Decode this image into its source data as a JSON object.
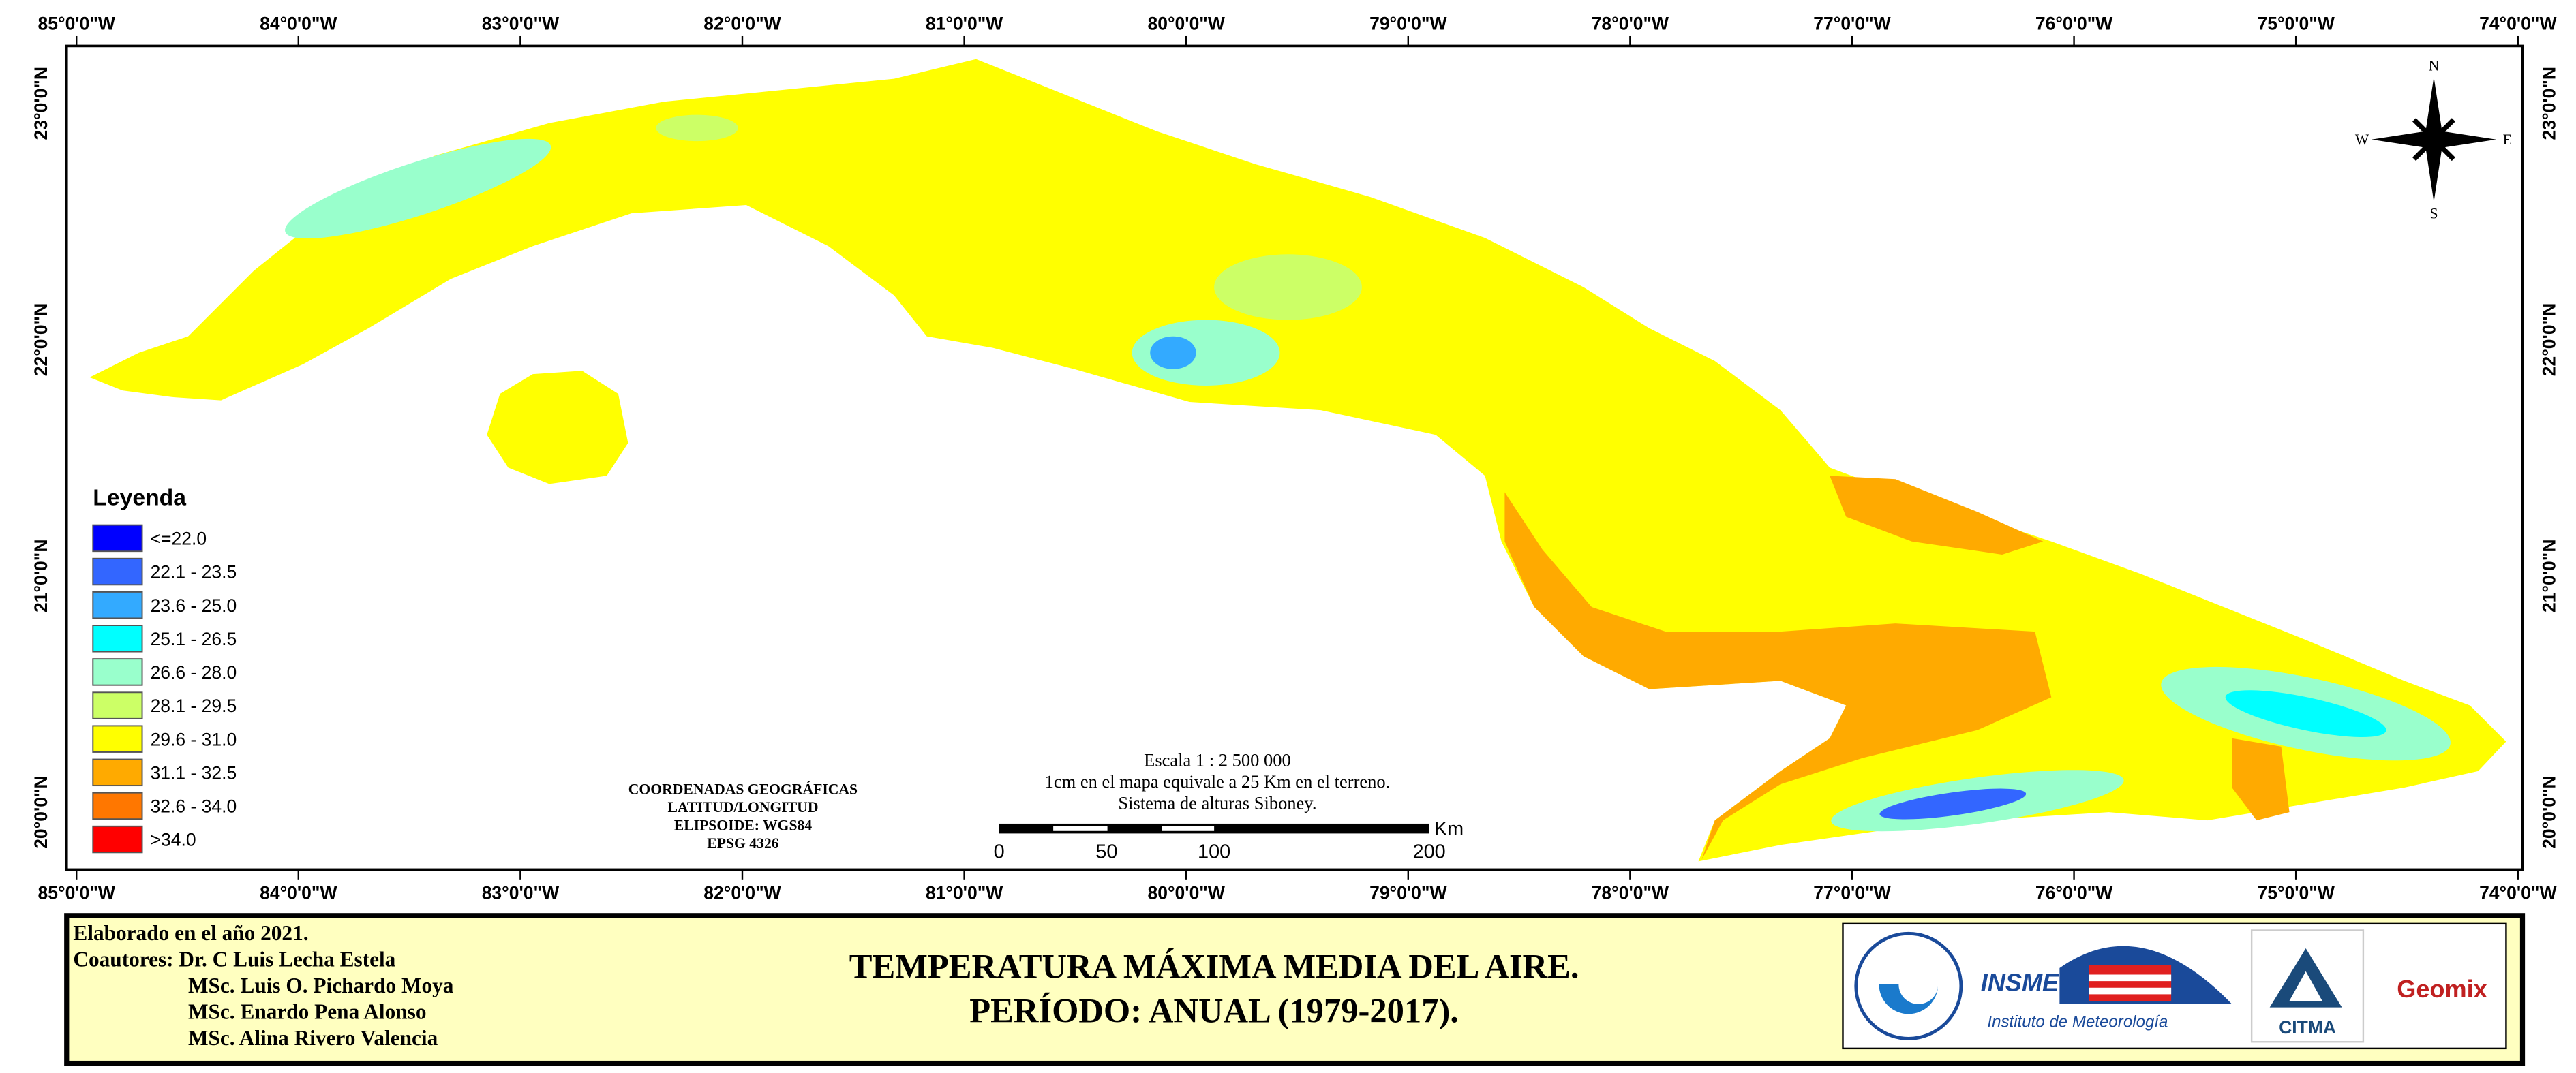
{
  "map": {
    "longitude_labels": [
      "85°0'0\"W",
      "84°0'0\"W",
      "83°0'0\"W",
      "82°0'0\"W",
      "81°0'0\"W",
      "80°0'0\"W",
      "79°0'0\"W",
      "78°0'0\"W",
      "77°0'0\"W",
      "76°0'0\"W",
      "75°0'0\"W",
      "74°0'0\"W"
    ],
    "latitude_labels": [
      "23°0'0\"N",
      "22°0'0\"N",
      "21°0'0\"N",
      "20°0'0\"N"
    ],
    "compass": {
      "n": "N",
      "s": "S",
      "e": "E",
      "w": "W"
    },
    "legend": {
      "title": "Leyenda",
      "items": [
        {
          "label": "<=22.0",
          "color": "#0000ff"
        },
        {
          "label": "22.1 - 23.5",
          "color": "#3366ff"
        },
        {
          "label": "23.6 - 25.0",
          "color": "#33aaff"
        },
        {
          "label": "25.1 - 26.5",
          "color": "#00ffff"
        },
        {
          "label": "26.6 - 28.0",
          "color": "#99ffcc"
        },
        {
          "label": "28.1 - 29.5",
          "color": "#ccff66"
        },
        {
          "label": "29.6 - 31.0",
          "color": "#ffff00"
        },
        {
          "label": "31.1 - 32.5",
          "color": "#ffaa00"
        },
        {
          "label": "32.6 - 34.0",
          "color": "#ff7700"
        },
        {
          "label": ">34.0",
          "color": "#ff0000"
        }
      ]
    },
    "coordinates_note": [
      "COORDENADAS GEOGRÁFICAS",
      "LATITUD/LONGITUD",
      "ELIPSOIDE: WGS84",
      "EPSG 4326"
    ],
    "scale": {
      "lines": [
        "Escala 1 : 2 500 000",
        "1cm en el mapa equivale a 25 Km en el terreno.",
        "Sistema de alturas Siboney."
      ],
      "ticks": [
        0,
        50,
        100,
        200
      ],
      "unit": "Km"
    }
  },
  "footer": {
    "credits": [
      "Elaborado en el año 2021.",
      "Coautores: Dr. C Luis Lecha Estela",
      "MSc. Luis O. Pichardo Moya",
      "MSc. Enardo Pena Alonso",
      "MSc. Alina Rivero Valencia"
    ],
    "title": [
      "TEMPERATURA MÁXIMA MEDIA DEL AIRE.",
      "PERÍODO: ANUAL (1979-2017)."
    ],
    "logos": [
      "INSMET",
      "Instituto de Meteorología",
      "CITMA",
      "Geomix"
    ]
  }
}
